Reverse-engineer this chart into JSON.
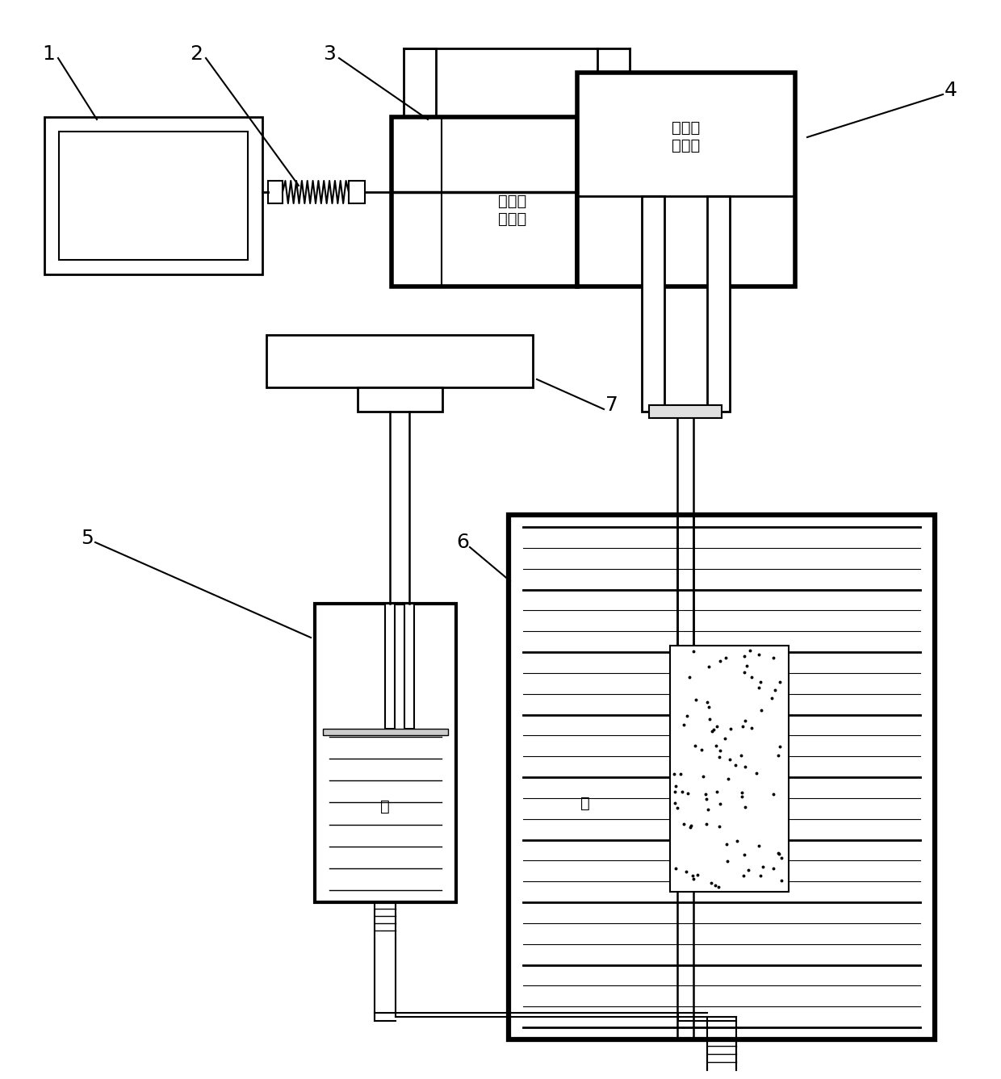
{
  "bg_color": "#ffffff",
  "line_color": "#000000",
  "labels": [
    "1",
    "2",
    "3",
    "4",
    "5",
    "6",
    "7"
  ],
  "text_3": "不可压\n缩液体",
  "text_4": "不可压\n缩液体",
  "text_water1": "水",
  "text_water2": "水",
  "figsize": [
    12.4,
    13.37
  ],
  "dpi": 100
}
